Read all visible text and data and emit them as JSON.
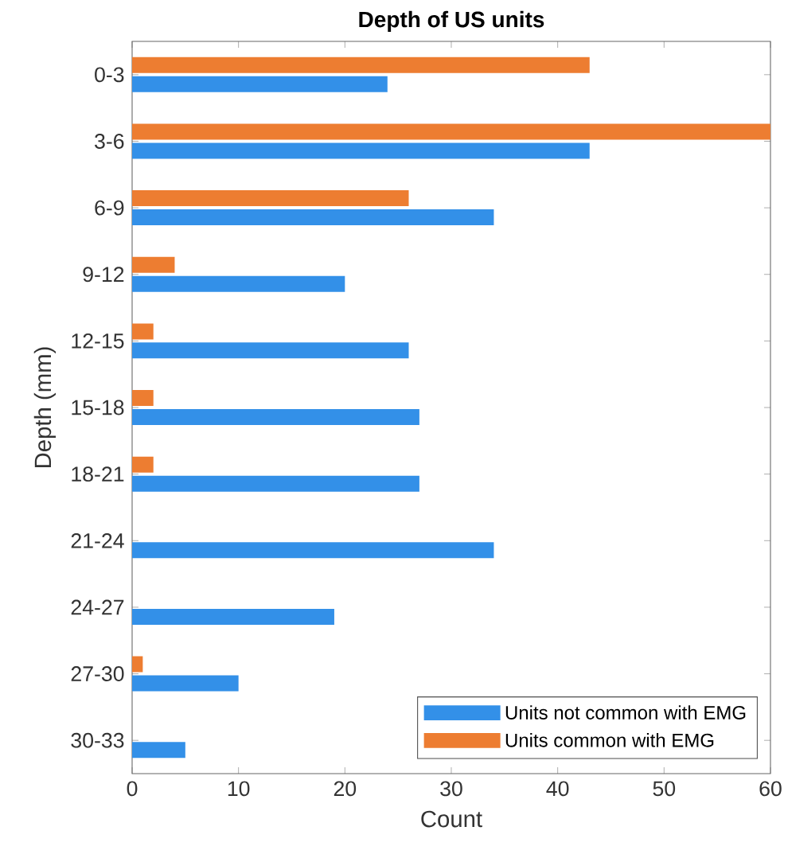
{
  "chart_data": {
    "type": "bar",
    "orientation": "horizontal",
    "title": "Depth of US units",
    "xlabel": "Count",
    "ylabel": "Depth (mm)",
    "categories": [
      "0-3",
      "3-6",
      "6-9",
      "9-12",
      "12-15",
      "15-18",
      "18-21",
      "21-24",
      "24-27",
      "27-30",
      "30-33"
    ],
    "series": [
      {
        "name": "Units not common with EMG",
        "color": "#3390e8",
        "values": [
          24,
          43,
          34,
          20,
          26,
          27,
          27,
          34,
          19,
          10,
          5
        ]
      },
      {
        "name": "Units common with EMG",
        "color": "#ed7d31",
        "values": [
          43,
          60,
          26,
          4,
          2,
          2,
          2,
          0,
          0,
          1,
          0
        ]
      }
    ],
    "xlim": [
      0,
      60
    ],
    "xticks": [
      0,
      10,
      20,
      30,
      40,
      50,
      60
    ],
    "legend": "bottom right",
    "grid": false
  }
}
